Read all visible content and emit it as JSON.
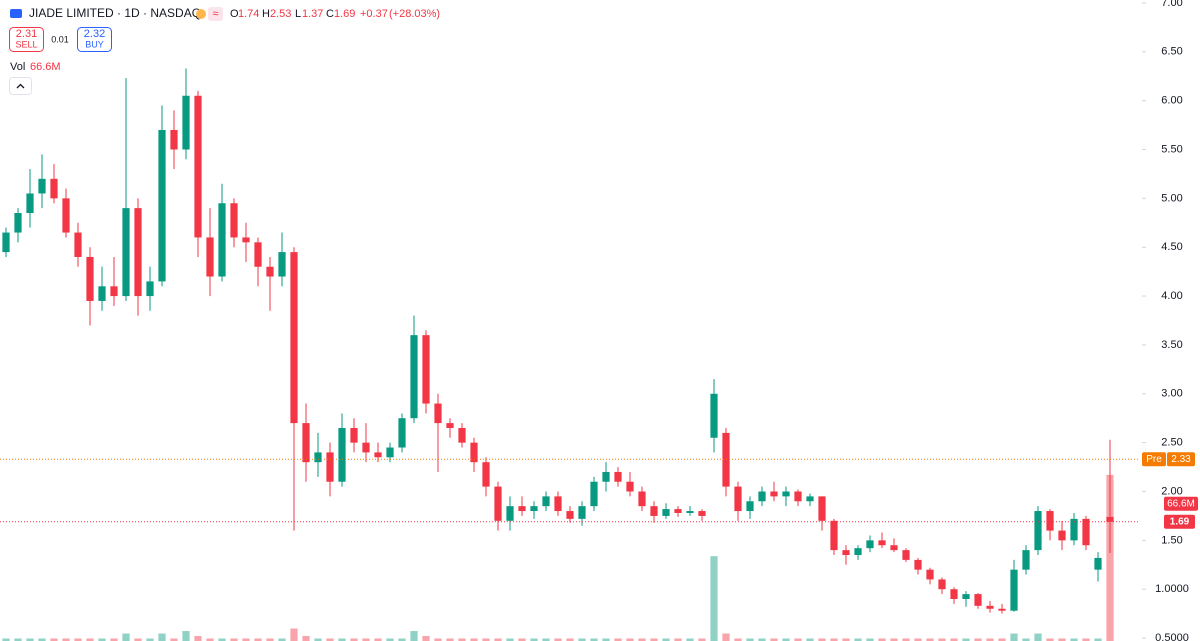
{
  "chart_data": {
    "type": "candlestick",
    "title": "JIADE LIMITED · 1D · NASDAQ",
    "legend": {
      "open_label": "O",
      "open": 1.74,
      "high_label": "H",
      "high": 2.53,
      "low_label": "L",
      "low": 1.37,
      "close_label": "C",
      "close": 1.69,
      "change": {
        "value": 0.37,
        "label": "+0.37"
      },
      "change_pct": {
        "value": 28.03,
        "label": "(+28.03%)"
      }
    },
    "sell": {
      "price": 2.31,
      "label": "SELL"
    },
    "spread": 0.01,
    "buy": {
      "price": 2.32,
      "label": "BUY"
    },
    "volume_title": "Vol",
    "volume_value": {
      "value": 66.6,
      "label": "66.6M"
    },
    "up_color": "#089981",
    "down_color": "#f23645",
    "ylim": [
      0.47,
      7.03
    ],
    "yticks": [
      {
        "value": 7,
        "label": "7.00"
      },
      {
        "value": 6.5,
        "label": "6.50"
      },
      {
        "value": 6,
        "label": "6.00"
      },
      {
        "value": 5.5,
        "label": "5.50"
      },
      {
        "value": 5,
        "label": "5.00"
      },
      {
        "value": 4.5,
        "label": "4.50"
      },
      {
        "value": 4,
        "label": "4.00"
      },
      {
        "value": 3.5,
        "label": "3.50"
      },
      {
        "value": 3,
        "label": "3.00"
      },
      {
        "value": 2.5,
        "label": "2.50"
      },
      {
        "value": 2,
        "label": "2.00"
      },
      {
        "value": 1.5,
        "label": "1.50"
      },
      {
        "value": 1,
        "label": "1.0000"
      },
      {
        "value": 0.5,
        "label": "0.5000"
      }
    ],
    "pre_market": {
      "label": "Pre",
      "value": 2.33,
      "color": "#f57c00"
    },
    "last_price": {
      "value": 1.69,
      "color": "#f23645"
    },
    "volume_marker": {
      "value": 66.6,
      "label": "66.6M"
    },
    "volume_lim": [
      0,
      257
    ],
    "ohlc": [
      [
        4.45,
        4.7,
        4.4,
        4.65
      ],
      [
        4.65,
        4.9,
        4.55,
        4.85
      ],
      [
        4.85,
        5.3,
        4.7,
        5.05
      ],
      [
        5.05,
        5.45,
        4.9,
        5.2
      ],
      [
        5.2,
        5.35,
        4.95,
        5.0
      ],
      [
        5.0,
        5.1,
        4.6,
        4.65
      ],
      [
        4.65,
        4.75,
        4.3,
        4.4
      ],
      [
        4.4,
        4.5,
        3.7,
        3.95
      ],
      [
        3.95,
        4.3,
        3.85,
        4.1
      ],
      [
        4.1,
        4.4,
        3.9,
        4.0
      ],
      [
        4.0,
        6.23,
        3.95,
        4.9
      ],
      [
        4.9,
        5.0,
        3.8,
        4.0
      ],
      [
        4.0,
        4.3,
        3.85,
        4.15
      ],
      [
        4.15,
        5.95,
        4.1,
        5.7
      ],
      [
        5.7,
        5.9,
        5.3,
        5.5
      ],
      [
        5.5,
        6.33,
        5.4,
        6.05
      ],
      [
        6.05,
        6.1,
        4.4,
        4.6
      ],
      [
        4.6,
        4.9,
        4.0,
        4.2
      ],
      [
        4.2,
        5.15,
        4.15,
        4.95
      ],
      [
        4.95,
        5.0,
        4.5,
        4.6
      ],
      [
        4.6,
        4.75,
        4.35,
        4.55
      ],
      [
        4.55,
        4.6,
        4.1,
        4.3
      ],
      [
        4.3,
        4.4,
        3.85,
        4.2
      ],
      [
        4.2,
        4.65,
        4.1,
        4.45
      ],
      [
        4.45,
        4.5,
        1.6,
        2.7
      ],
      [
        2.7,
        2.9,
        2.1,
        2.3
      ],
      [
        2.3,
        2.6,
        2.15,
        2.4
      ],
      [
        2.4,
        2.5,
        1.95,
        2.1
      ],
      [
        2.1,
        2.8,
        2.05,
        2.65
      ],
      [
        2.65,
        2.75,
        2.4,
        2.5
      ],
      [
        2.5,
        2.7,
        2.3,
        2.4
      ],
      [
        2.4,
        2.5,
        2.3,
        2.35
      ],
      [
        2.35,
        2.5,
        2.3,
        2.45
      ],
      [
        2.45,
        2.8,
        2.4,
        2.75
      ],
      [
        2.75,
        3.8,
        2.7,
        3.6
      ],
      [
        3.6,
        3.65,
        2.8,
        2.9
      ],
      [
        2.9,
        3.0,
        2.2,
        2.7
      ],
      [
        2.7,
        2.75,
        2.55,
        2.65
      ],
      [
        2.65,
        2.7,
        2.45,
        2.5
      ],
      [
        2.5,
        2.55,
        2.2,
        2.3
      ],
      [
        2.3,
        2.35,
        1.95,
        2.05
      ],
      [
        2.05,
        2.1,
        1.6,
        1.7
      ],
      [
        1.7,
        1.95,
        1.6,
        1.85
      ],
      [
        1.85,
        1.95,
        1.75,
        1.8
      ],
      [
        1.8,
        1.9,
        1.72,
        1.85
      ],
      [
        1.85,
        2.0,
        1.8,
        1.95
      ],
      [
        1.95,
        2.0,
        1.75,
        1.8
      ],
      [
        1.8,
        1.85,
        1.68,
        1.72
      ],
      [
        1.72,
        1.9,
        1.65,
        1.85
      ],
      [
        1.85,
        2.15,
        1.8,
        2.1
      ],
      [
        2.1,
        2.3,
        2.0,
        2.2
      ],
      [
        2.2,
        2.25,
        2.05,
        2.1
      ],
      [
        2.1,
        2.2,
        1.95,
        2.0
      ],
      [
        2.0,
        2.05,
        1.8,
        1.85
      ],
      [
        1.85,
        1.9,
        1.68,
        1.75
      ],
      [
        1.75,
        1.88,
        1.72,
        1.82
      ],
      [
        1.82,
        1.85,
        1.74,
        1.78
      ],
      [
        1.78,
        1.85,
        1.75,
        1.8
      ],
      [
        1.8,
        1.82,
        1.7,
        1.75
      ],
      [
        2.55,
        3.15,
        2.4,
        3.0
      ],
      [
        2.6,
        2.65,
        1.95,
        2.05
      ],
      [
        2.05,
        2.1,
        1.7,
        1.8
      ],
      [
        1.8,
        1.95,
        1.72,
        1.9
      ],
      [
        1.9,
        2.05,
        1.85,
        2.0
      ],
      [
        2.0,
        2.1,
        1.9,
        1.95
      ],
      [
        1.95,
        2.05,
        1.85,
        2.0
      ],
      [
        2.0,
        2.02,
        1.85,
        1.9
      ],
      [
        1.9,
        1.98,
        1.85,
        1.95
      ],
      [
        1.95,
        1.95,
        1.6,
        1.7
      ],
      [
        1.7,
        1.72,
        1.35,
        1.4
      ],
      [
        1.4,
        1.45,
        1.25,
        1.35
      ],
      [
        1.35,
        1.45,
        1.3,
        1.42
      ],
      [
        1.42,
        1.55,
        1.38,
        1.5
      ],
      [
        1.5,
        1.58,
        1.42,
        1.45
      ],
      [
        1.45,
        1.52,
        1.38,
        1.4
      ],
      [
        1.4,
        1.42,
        1.28,
        1.3
      ],
      [
        1.3,
        1.32,
        1.15,
        1.2
      ],
      [
        1.2,
        1.22,
        1.05,
        1.1
      ],
      [
        1.1,
        1.12,
        0.95,
        1.0
      ],
      [
        1.0,
        1.02,
        0.85,
        0.9
      ],
      [
        0.9,
        0.98,
        0.82,
        0.95
      ],
      [
        0.95,
        0.96,
        0.8,
        0.83
      ],
      [
        0.83,
        0.88,
        0.76,
        0.8
      ],
      [
        0.8,
        0.85,
        0.75,
        0.78
      ],
      [
        0.78,
        1.3,
        0.77,
        1.2
      ],
      [
        1.2,
        1.45,
        1.15,
        1.4
      ],
      [
        1.4,
        1.85,
        1.35,
        1.8
      ],
      [
        1.8,
        1.82,
        1.5,
        1.6
      ],
      [
        1.6,
        1.7,
        1.4,
        1.5
      ],
      [
        1.5,
        1.78,
        1.45,
        1.72
      ],
      [
        1.72,
        1.75,
        1.4,
        1.45
      ],
      [
        1.2,
        1.38,
        1.08,
        1.32
      ],
      [
        1.74,
        2.53,
        1.37,
        1.69
      ]
    ],
    "volume": [
      1,
      1,
      1,
      1,
      1,
      1,
      1,
      1,
      1,
      1,
      3,
      1,
      1,
      3,
      1,
      4,
      2,
      1,
      1,
      1,
      1,
      1,
      1,
      1,
      5,
      2,
      1,
      1,
      1,
      1,
      1,
      1,
      1,
      1,
      4,
      2,
      1,
      1,
      1,
      1,
      1,
      1,
      1,
      1,
      1,
      1,
      1,
      1,
      1,
      1,
      1,
      1,
      1,
      1,
      1,
      1,
      1,
      1,
      1,
      34,
      3,
      1,
      1,
      1,
      1,
      1,
      1,
      1,
      1,
      1,
      1,
      1,
      1,
      1,
      1,
      1,
      1,
      1,
      1,
      1,
      1,
      1,
      1,
      1,
      3,
      1,
      3,
      1,
      1,
      1,
      1,
      1,
      66.6
    ]
  }
}
